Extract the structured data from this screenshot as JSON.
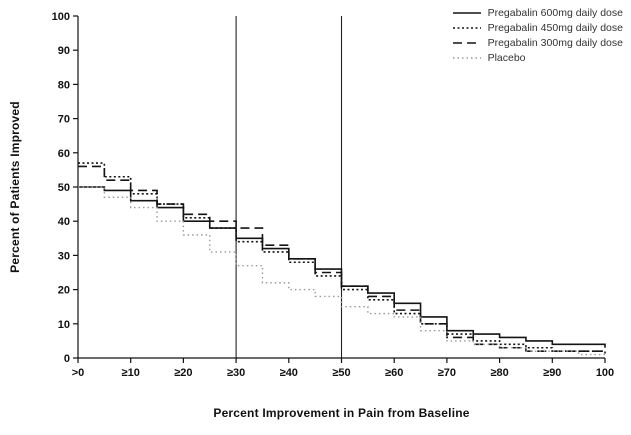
{
  "chart_data": {
    "type": "line",
    "step": true,
    "title": "",
    "xlabel": "Percent Improvement in Pain from Baseline",
    "ylabel": "Percent of Patients Improved",
    "xlim": [
      0,
      100
    ],
    "ylim": [
      0,
      100
    ],
    "grid": false,
    "legend_position": "top-right",
    "x_tick_values": [
      0,
      10,
      20,
      30,
      40,
      50,
      60,
      70,
      80,
      90,
      100
    ],
    "x_tick_labels": [
      ">0",
      "≥10",
      "≥20",
      "≥30",
      "≥40",
      "≥50",
      "≥60",
      "≥70",
      "≥80",
      "≥90",
      "100"
    ],
    "y_tick_values": [
      0,
      10,
      20,
      30,
      40,
      50,
      60,
      70,
      80,
      90,
      100
    ],
    "reference_lines_x": [
      30,
      50
    ],
    "x": [
      0,
      5,
      10,
      15,
      20,
      25,
      30,
      35,
      40,
      45,
      50,
      55,
      60,
      65,
      70,
      75,
      80,
      85,
      90,
      95,
      100
    ],
    "series": [
      {
        "name": "Pregabalin 600mg daily dose",
        "color": "#141414",
        "dash": "",
        "stroke_width": 1.6,
        "values": [
          50,
          49,
          46,
          44,
          40,
          38,
          35,
          32,
          29,
          26,
          21,
          19,
          16,
          12,
          8,
          7,
          6,
          5,
          4,
          4,
          3
        ]
      },
      {
        "name": "Pregabalin 450mg daily dose",
        "color": "#141414",
        "dash": "2 2.5",
        "stroke_width": 1.6,
        "values": [
          57,
          53,
          48,
          45,
          41,
          38,
          34,
          31,
          28,
          24,
          20,
          17,
          13,
          10,
          7,
          5,
          4,
          3,
          2,
          2,
          1
        ]
      },
      {
        "name": "Pregabalin 300mg daily dose",
        "color": "#141414",
        "dash": "9 5",
        "stroke_width": 1.6,
        "values": [
          56,
          52,
          49,
          45,
          42,
          40,
          38,
          33,
          29,
          25,
          21,
          18,
          14,
          10,
          6,
          4,
          3,
          2,
          2,
          2,
          2
        ]
      },
      {
        "name": "Placebo",
        "color": "#9a9a9a",
        "dash": "1.5 3",
        "stroke_width": 1.4,
        "values": [
          50,
          47,
          44,
          40,
          36,
          31,
          27,
          22,
          20,
          18,
          15,
          13,
          12,
          8,
          5,
          4,
          3,
          2,
          2,
          1,
          1
        ]
      }
    ]
  }
}
